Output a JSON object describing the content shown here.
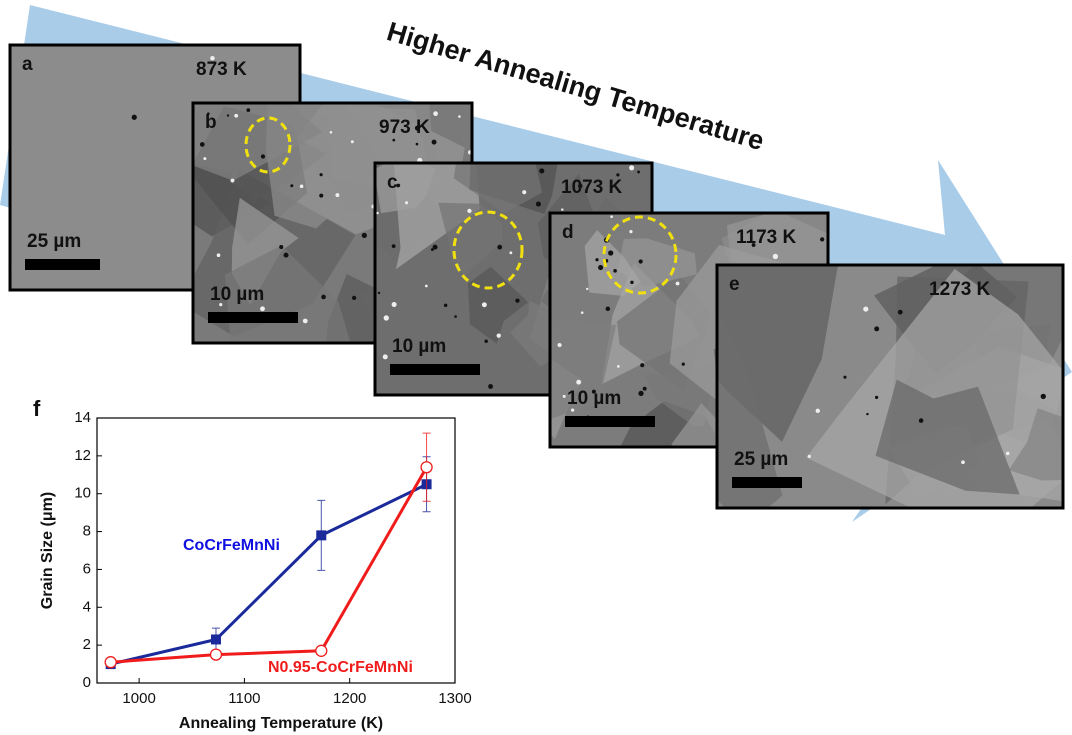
{
  "banner": "Higher Annealing Temperature",
  "panels": [
    {
      "letter": "a",
      "temperature": "873 K",
      "scale": "25 µm"
    },
    {
      "letter": "b",
      "temperature": "973 K",
      "scale": "10 µm"
    },
    {
      "letter": "c",
      "temperature": "1073 K",
      "scale": "10 µm"
    },
    {
      "letter": "d",
      "temperature": "1173 K",
      "scale": "10 µm"
    },
    {
      "letter": "e",
      "temperature": "1273 K",
      "scale": "25 µm"
    }
  ],
  "chart_data": {
    "type": "line",
    "panel_label": "f",
    "xlabel": "Annealing Temperature (K)",
    "ylabel": "Grain Size (μm)",
    "x": [
      973,
      1073,
      1173,
      1273
    ],
    "series": [
      {
        "name": "CoCrFeMnNi",
        "color": "#1a2a9a",
        "values": [
          1.0,
          2.3,
          7.8,
          10.5
        ],
        "errors": [
          0.1,
          0.6,
          1.85,
          1.45
        ]
      },
      {
        "name": "N0.95-CoCrFeMnNi",
        "color": "#f01c1c",
        "values": [
          1.1,
          1.5,
          1.7,
          11.4
        ],
        "errors": [
          0.1,
          0.1,
          0.1,
          1.8
        ]
      }
    ],
    "xlim": [
      960,
      1300
    ],
    "xticks": [
      1000,
      1100,
      1200,
      1300
    ],
    "ylim": [
      0,
      14
    ],
    "yticks": [
      0,
      2,
      4,
      6,
      8,
      10,
      12,
      14
    ]
  }
}
